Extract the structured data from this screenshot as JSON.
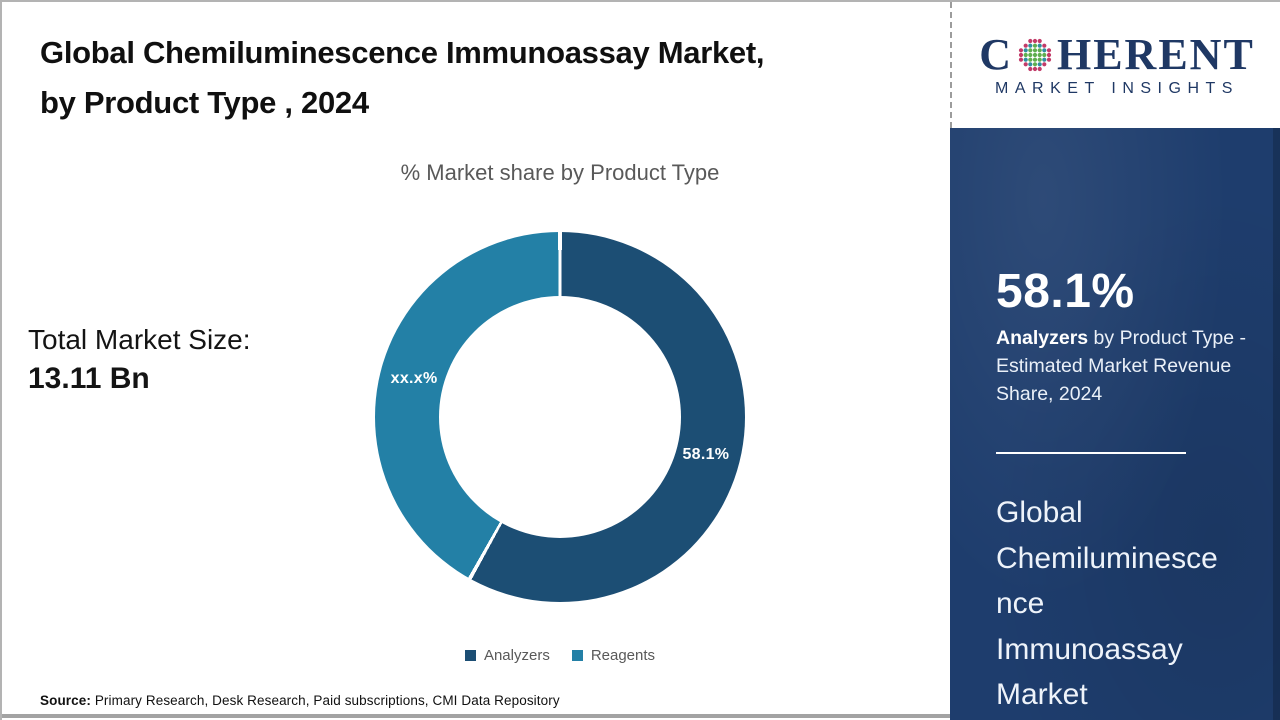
{
  "page": {
    "title": "Global Chemiluminescence Immunoassay Market, by Product Type , 2024",
    "subtitle": "% Market share by Product Type",
    "total_market_label": "Total Market Size:",
    "total_market_value": "13.11 Bn",
    "source_label": "Source:",
    "source_text": " Primary Research, Desk Research, Paid subscriptions, CMI Data Repository"
  },
  "logo": {
    "name_part1": "C",
    "name_part2": "HERENT",
    "subtitle": "MARKET INSIGHTS",
    "navy_color": "#1f3864"
  },
  "sidebar": {
    "headline_value": "58.1%",
    "headline_bold": "Analyzers",
    "headline_rest": " by Product Type - Estimated Market Revenue Share, 2024",
    "footer_title": "Global Chemiluminescence Immunoassay Market",
    "bg_color": "#1e3d6d"
  },
  "chart_data": {
    "type": "pie",
    "subtype": "donut",
    "title": "% Market share by Product Type",
    "categories": [
      "Analyzers",
      "Reagents"
    ],
    "values": [
      58.1,
      41.9
    ],
    "labels": [
      "58.1%",
      "xx.x%"
    ],
    "colors": [
      "#1c4e74",
      "#2380a6"
    ],
    "legend_position": "bottom",
    "hole_ratio": 0.65,
    "start_angle_deg": 0
  }
}
